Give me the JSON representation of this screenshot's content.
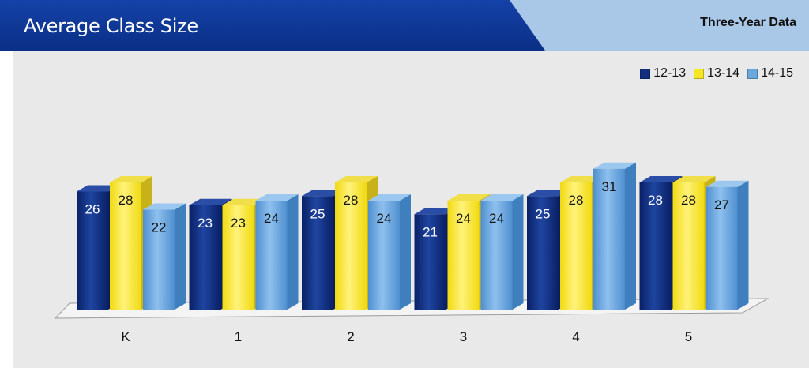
{
  "header": {
    "title": "Average Class Size",
    "subtitle": "Three-Year Data",
    "colors": {
      "title_band": "#0a2f86",
      "subtitle_band": "#a9c8e8",
      "panel": "#e9e9e9"
    }
  },
  "legend": {
    "items": [
      {
        "label": "12-13",
        "color": "#12307f"
      },
      {
        "label": "13-14",
        "color": "#f7e626"
      },
      {
        "label": "14-15",
        "color": "#6aa7dc"
      }
    ]
  },
  "chart_data": {
    "type": "bar",
    "title": "Average Class Size",
    "subtitle": "Three-Year Data",
    "categories": [
      "K",
      "1",
      "2",
      "3",
      "4",
      "5"
    ],
    "series": [
      {
        "name": "12-13",
        "color": "#12307f",
        "values": [
          26,
          23,
          25,
          21,
          25,
          28
        ]
      },
      {
        "name": "13-14",
        "color": "#f7e626",
        "values": [
          28,
          23,
          28,
          24,
          28,
          28
        ]
      },
      {
        "name": "14-15",
        "color": "#6aa7dc",
        "values": [
          22,
          24,
          24,
          24,
          31,
          27
        ]
      }
    ],
    "xlabel": "",
    "ylabel": "",
    "ylim": [
      0,
      35
    ],
    "grid": false,
    "legend_position": "top-right",
    "style": "3d"
  }
}
